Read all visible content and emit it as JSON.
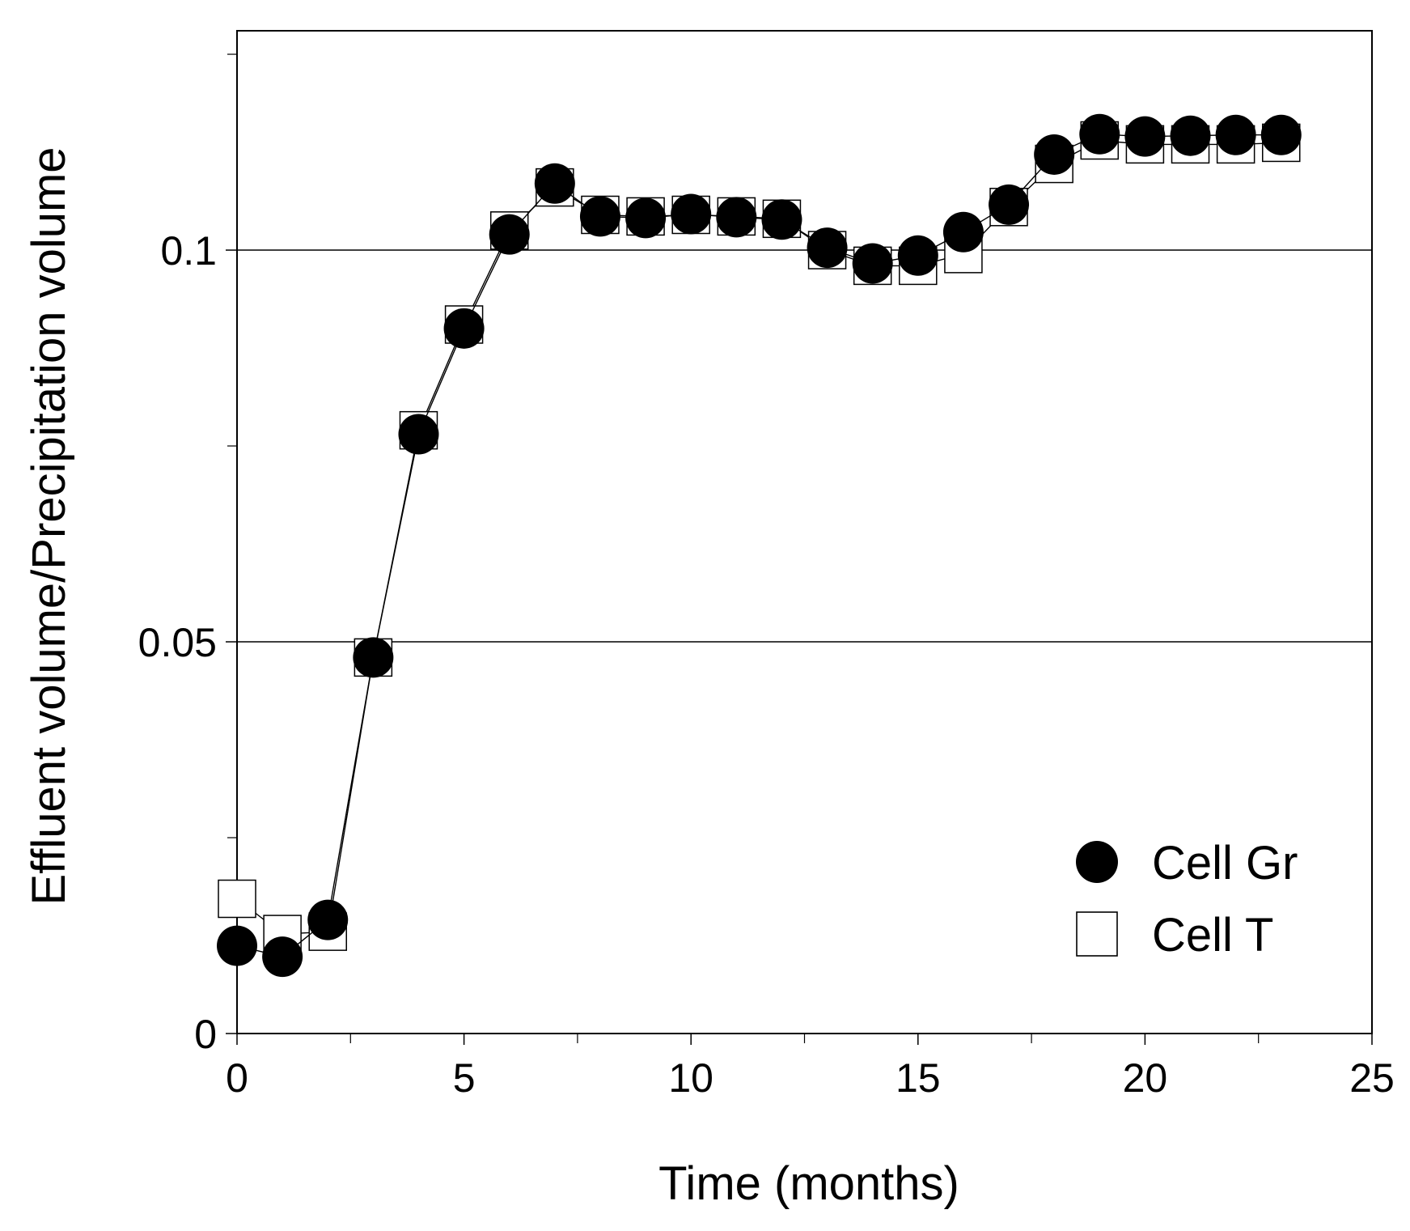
{
  "chart_data": {
    "type": "line",
    "title": "",
    "xlabel": "Time (months)",
    "ylabel": "Effluent volume/Precipitation volume",
    "xlim": [
      0,
      25
    ],
    "ylim": [
      0,
      0.128
    ],
    "x_ticks": [
      0,
      5,
      10,
      15,
      20,
      25
    ],
    "x_tick_labels": [
      "0",
      "5",
      "10",
      "15",
      "20",
      "25"
    ],
    "x_minor_ticks": [
      2.5,
      7.5,
      12.5,
      17.5,
      22.5
    ],
    "y_ticks": [
      0,
      0.05,
      0.1
    ],
    "y_tick_labels": [
      "0",
      "0.05",
      "0.1"
    ],
    "y_minor_ticks": [
      0.025,
      0.075,
      0.125
    ],
    "gridlines_y": [
      0.05,
      0.1
    ],
    "legend_position": "bottom-right",
    "series": [
      {
        "name": "Cell Gr",
        "marker": "filled-circle",
        "color": "#000000",
        "x": [
          0,
          1,
          2,
          3,
          4,
          5,
          6,
          7,
          8,
          9,
          10,
          11,
          12,
          13,
          14,
          15,
          16,
          17,
          18,
          19,
          20,
          21,
          22,
          23
        ],
        "values": [
          0.0112,
          0.0098,
          0.0145,
          0.048,
          0.0765,
          0.09,
          0.102,
          0.1085,
          0.1043,
          0.1041,
          0.1046,
          0.1042,
          0.1039,
          0.1003,
          0.0983,
          0.0993,
          0.1023,
          0.1058,
          0.1122,
          0.1148,
          0.1145,
          0.1146,
          0.1147,
          0.1147
        ]
      },
      {
        "name": "Cell T",
        "marker": "open-square",
        "color": "#000000",
        "x": [
          0,
          1,
          2,
          3,
          4,
          5,
          6,
          7,
          8,
          9,
          10,
          11,
          12,
          13,
          14,
          15,
          16,
          17,
          18,
          19,
          20,
          21,
          22,
          23
        ],
        "values": [
          0.0172,
          0.0127,
          0.013,
          0.048,
          0.077,
          0.0905,
          0.1025,
          0.108,
          0.1045,
          0.1043,
          0.1045,
          0.1043,
          0.104,
          0.1,
          0.098,
          0.098,
          0.0995,
          0.1055,
          0.111,
          0.114,
          0.1135,
          0.1135,
          0.1135,
          0.1137
        ]
      }
    ]
  }
}
